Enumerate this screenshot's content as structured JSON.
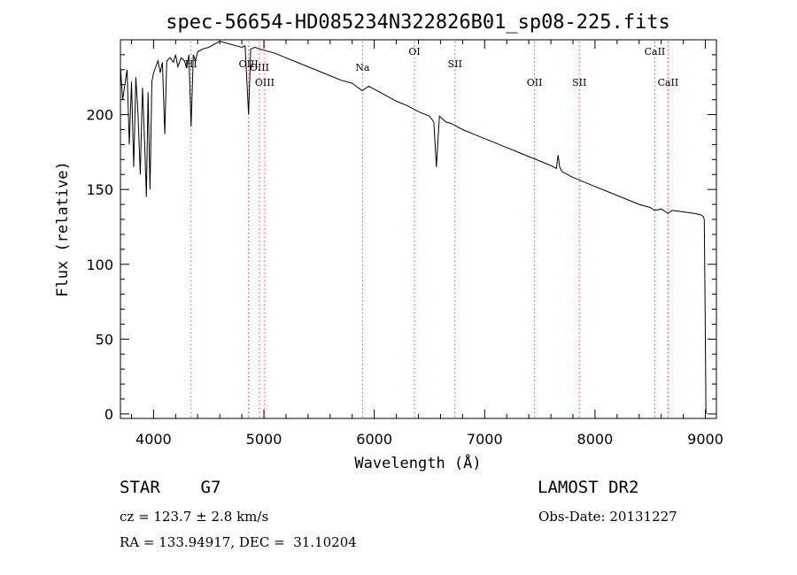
{
  "chart_data": {
    "type": "line",
    "title": "spec-56654-HD085234N322826B01_sp08-225.fits",
    "xlabel": "Wavelength (Å)",
    "ylabel": "Flux (relative)",
    "xlim": [
      3700,
      9100
    ],
    "ylim": [
      -3,
      250
    ],
    "xticks": [
      4000,
      5000,
      6000,
      7000,
      8000,
      9000
    ],
    "yticks": [
      0,
      50,
      100,
      150,
      200
    ],
    "series": [
      {
        "x": [
          3700,
          3720,
          3740,
          3760,
          3780,
          3800,
          3820,
          3840,
          3860,
          3880,
          3900,
          3920,
          3935,
          3950,
          3968,
          3985,
          4000,
          4020,
          4040,
          4060,
          4080,
          4102,
          4120,
          4150,
          4180,
          4200,
          4220,
          4250,
          4280,
          4300,
          4320,
          4340,
          4360,
          4380,
          4400,
          4450,
          4500,
          4550,
          4600,
          4650,
          4700,
          4750,
          4800,
          4830,
          4861,
          4880,
          4920,
          4960,
          5000,
          5100,
          5200,
          5300,
          5400,
          5500,
          5600,
          5700,
          5800,
          5890,
          5950,
          6000,
          6100,
          6200,
          6300,
          6400,
          6500,
          6540,
          6563,
          6590,
          6650,
          6700,
          6800,
          6900,
          7000,
          7100,
          7200,
          7300,
          7400,
          7500,
          7600,
          7650,
          7665,
          7680,
          7700,
          7750,
          7800,
          7900,
          8000,
          8100,
          8200,
          8300,
          8400,
          8500,
          8540,
          8600,
          8662,
          8700,
          8800,
          8900,
          8960,
          8980,
          8990,
          8998,
          9005
        ],
        "y": [
          232,
          210,
          220,
          230,
          180,
          222,
          165,
          225,
          200,
          160,
          218,
          180,
          145,
          215,
          150,
          222,
          228,
          232,
          236,
          228,
          235,
          187,
          236,
          238,
          235,
          240,
          232,
          238,
          236,
          231,
          240,
          192,
          240,
          236,
          242,
          244,
          245,
          247,
          249,
          248,
          247,
          246,
          245,
          246,
          200,
          244,
          245,
          244,
          243,
          241,
          238,
          235,
          232,
          229,
          226,
          223,
          221,
          216,
          219,
          217,
          213,
          209,
          206,
          202,
          199,
          195,
          165,
          199,
          195,
          194,
          190,
          187,
          184,
          181,
          178,
          175,
          172,
          169,
          166,
          164,
          173,
          165,
          162,
          160,
          158,
          155,
          152,
          149,
          146,
          143,
          140,
          138,
          136,
          137,
          134,
          136,
          135,
          134,
          133,
          132,
          130,
          66,
          0
        ]
      }
    ],
    "lines": [
      {
        "x": 4340,
        "label": "HI",
        "row": 1
      },
      {
        "x": 4861,
        "label": "OIII",
        "row": 1
      },
      {
        "x": 4959,
        "label": "OIII",
        "row": 2
      },
      {
        "x": 5007,
        "label": "OIII",
        "row": 3
      },
      {
        "x": 5893,
        "label": "Na",
        "row": 2
      },
      {
        "x": 6364,
        "label": "OI",
        "row": 0
      },
      {
        "x": 6731,
        "label": "SII",
        "row": 1
      },
      {
        "x": 7452,
        "label": "OII",
        "row": 3
      },
      {
        "x": 7858,
        "label": "SII",
        "row": 3
      },
      {
        "x": 8542,
        "label": "CaII",
        "row": 0
      },
      {
        "x": 8662,
        "label": "CaII",
        "row": 3
      }
    ]
  },
  "info": {
    "class": "STAR    G7",
    "survey": "LAMOST DR2",
    "redshift": "cz = 123.7 ± 2.8 km/s",
    "obsdate": "Obs-Date: 20131227",
    "coords": "RA = 133.94917, DEC =  31.10204"
  }
}
